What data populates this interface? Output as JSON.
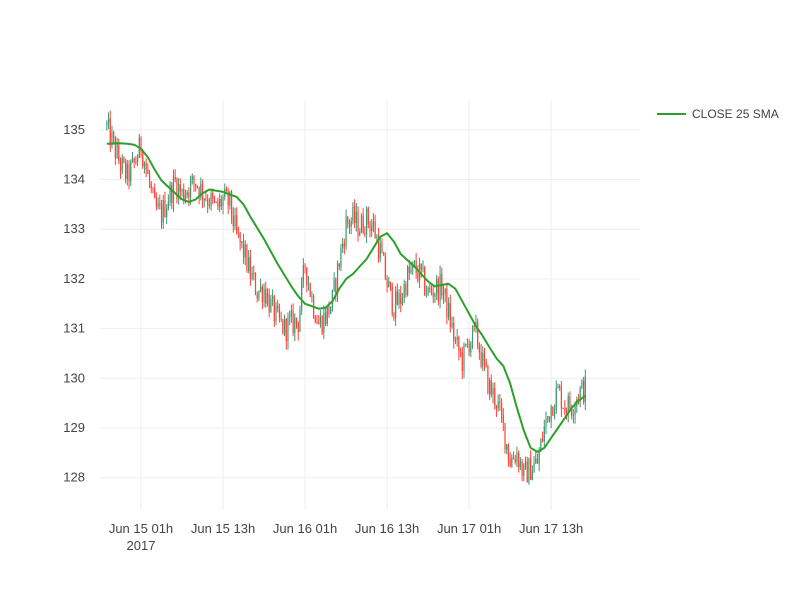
{
  "chart_data": {
    "type": "candlestick",
    "title": "",
    "xlabel": "",
    "ylabel": "",
    "ylim": [
      127.35,
      135.6
    ],
    "xlim": [
      "2017-06-14 19:00",
      "2017-06-18 02:00"
    ],
    "grid": true,
    "legend_position": "top-right",
    "colors": {
      "increasing": "#3D9970",
      "decreasing": "#FF4136",
      "sma": "#2CA02C"
    },
    "y_ticks": [
      "128",
      "129",
      "130",
      "131",
      "132",
      "133",
      "134",
      "135"
    ],
    "x_ticks": [
      {
        "at": "2017-06-15 01:00",
        "label": "Jun 15 01h",
        "sublabel": "2017"
      },
      {
        "at": "2017-06-15 13:00",
        "label": "Jun 15 13h",
        "sublabel": ""
      },
      {
        "at": "2017-06-16 01:00",
        "label": "Jun 16 01h",
        "sublabel": ""
      },
      {
        "at": "2017-06-16 13:00",
        "label": "Jun 16 13h",
        "sublabel": ""
      },
      {
        "at": "2017-06-17 01:00",
        "label": "Jun 17 01h",
        "sublabel": ""
      },
      {
        "at": "2017-06-17 13:00",
        "label": "Jun 17 13h",
        "sublabel": ""
      }
    ],
    "series": [
      {
        "name": "CLOSE 25 SMA",
        "kind": "line",
        "points": [
          [
            "2017-06-14 20:00",
            134.72
          ],
          [
            "2017-06-14 22:00",
            134.73
          ],
          [
            "2017-06-14 23:00",
            134.72
          ],
          [
            "2017-06-15 00:00",
            134.7
          ],
          [
            "2017-06-15 01:00",
            134.62
          ],
          [
            "2017-06-15 02:00",
            134.45
          ],
          [
            "2017-06-15 03:00",
            134.2
          ],
          [
            "2017-06-15 04:00",
            133.98
          ],
          [
            "2017-06-15 05:00",
            133.85
          ],
          [
            "2017-06-15 07:00",
            133.6
          ],
          [
            "2017-06-15 08:00",
            133.55
          ],
          [
            "2017-06-15 09:00",
            133.6
          ],
          [
            "2017-06-15 10:00",
            133.72
          ],
          [
            "2017-06-15 11:00",
            133.8
          ],
          [
            "2017-06-15 13:00",
            133.75
          ],
          [
            "2017-06-15 15:00",
            133.65
          ],
          [
            "2017-06-15 16:00",
            133.5
          ],
          [
            "2017-06-15 17:00",
            133.25
          ],
          [
            "2017-06-15 19:00",
            132.8
          ],
          [
            "2017-06-15 21:00",
            132.3
          ],
          [
            "2017-06-15 23:00",
            131.85
          ],
          [
            "2017-06-16 00:00",
            131.65
          ],
          [
            "2017-06-16 01:00",
            131.5
          ],
          [
            "2017-06-16 02:00",
            131.45
          ],
          [
            "2017-06-16 03:00",
            131.4
          ],
          [
            "2017-06-16 04:00",
            131.42
          ],
          [
            "2017-06-16 05:00",
            131.55
          ],
          [
            "2017-06-16 06:00",
            131.8
          ],
          [
            "2017-06-16 07:00",
            132.0
          ],
          [
            "2017-06-16 08:00",
            132.1
          ],
          [
            "2017-06-16 10:00",
            132.4
          ],
          [
            "2017-06-16 12:00",
            132.85
          ],
          [
            "2017-06-16 13:00",
            132.92
          ],
          [
            "2017-06-16 14:00",
            132.75
          ],
          [
            "2017-06-16 15:00",
            132.5
          ],
          [
            "2017-06-16 17:00",
            132.25
          ],
          [
            "2017-06-16 19:00",
            131.95
          ],
          [
            "2017-06-16 20:00",
            131.85
          ],
          [
            "2017-06-16 21:00",
            131.88
          ],
          [
            "2017-06-16 22:00",
            131.9
          ],
          [
            "2017-06-16 23:00",
            131.8
          ],
          [
            "2017-06-17 00:00",
            131.55
          ],
          [
            "2017-06-17 01:00",
            131.3
          ],
          [
            "2017-06-17 02:00",
            131.05
          ],
          [
            "2017-06-17 03:00",
            130.85
          ],
          [
            "2017-06-17 04:00",
            130.62
          ],
          [
            "2017-06-17 05:00",
            130.4
          ],
          [
            "2017-06-17 06:00",
            130.25
          ],
          [
            "2017-06-17 07:00",
            129.9
          ],
          [
            "2017-06-17 08:00",
            129.4
          ],
          [
            "2017-06-17 09:00",
            128.95
          ],
          [
            "2017-06-17 10:00",
            128.6
          ],
          [
            "2017-06-17 11:00",
            128.52
          ],
          [
            "2017-06-17 12:00",
            128.6
          ],
          [
            "2017-06-17 13:00",
            128.8
          ],
          [
            "2017-06-17 14:00",
            129.0
          ],
          [
            "2017-06-17 15:00",
            129.2
          ],
          [
            "2017-06-17 16:00",
            129.4
          ],
          [
            "2017-06-17 17:00",
            129.55
          ],
          [
            "2017-06-17 18:00",
            129.65
          ]
        ]
      },
      {
        "name": "",
        "kind": "candlestick",
        "anchors": [
          [
            "2017-06-14 20:00",
            135.05
          ],
          [
            "2017-06-14 22:00",
            134.3
          ],
          [
            "2017-06-14 23:00",
            134.05
          ],
          [
            "2017-06-15 00:00",
            134.3
          ],
          [
            "2017-06-15 01:00",
            134.7
          ],
          [
            "2017-06-15 02:00",
            134.05
          ],
          [
            "2017-06-15 03:00",
            133.4
          ],
          [
            "2017-06-15 04:00",
            133.3
          ],
          [
            "2017-06-15 05:00",
            133.65
          ],
          [
            "2017-06-15 06:00",
            133.95
          ],
          [
            "2017-06-15 07:00",
            133.7
          ],
          [
            "2017-06-15 08:00",
            133.85
          ],
          [
            "2017-06-15 09:00",
            133.95
          ],
          [
            "2017-06-15 10:00",
            133.75
          ],
          [
            "2017-06-15 11:00",
            133.6
          ],
          [
            "2017-06-15 12:00",
            133.4
          ],
          [
            "2017-06-15 13:00",
            133.6
          ],
          [
            "2017-06-15 14:00",
            133.5
          ],
          [
            "2017-06-15 15:00",
            132.85
          ],
          [
            "2017-06-15 16:00",
            132.55
          ],
          [
            "2017-06-15 17:00",
            132.1
          ],
          [
            "2017-06-15 18:00",
            131.75
          ],
          [
            "2017-06-15 19:00",
            131.8
          ],
          [
            "2017-06-15 20:00",
            131.45
          ],
          [
            "2017-06-15 21:00",
            131.15
          ],
          [
            "2017-06-15 22:00",
            131.0
          ],
          [
            "2017-06-15 23:00",
            131.1
          ],
          [
            "2017-06-16 00:00",
            131.15
          ],
          [
            "2017-06-16 01:00",
            132.3
          ],
          [
            "2017-06-16 02:00",
            131.6
          ],
          [
            "2017-06-16 03:00",
            131.1
          ],
          [
            "2017-06-16 04:00",
            131.25
          ],
          [
            "2017-06-16 05:00",
            131.55
          ],
          [
            "2017-06-16 06:00",
            132.35
          ],
          [
            "2017-06-16 07:00",
            133.1
          ],
          [
            "2017-06-16 08:00",
            133.2
          ],
          [
            "2017-06-16 09:00",
            133.05
          ],
          [
            "2017-06-16 10:00",
            133.2
          ],
          [
            "2017-06-16 11:00",
            133.05
          ],
          [
            "2017-06-16 12:00",
            132.55
          ],
          [
            "2017-06-16 13:00",
            131.9
          ],
          [
            "2017-06-16 14:00",
            131.45
          ],
          [
            "2017-06-16 15:00",
            131.6
          ],
          [
            "2017-06-16 16:00",
            132.05
          ],
          [
            "2017-06-16 17:00",
            132.2
          ],
          [
            "2017-06-16 18:00",
            132.05
          ],
          [
            "2017-06-16 19:00",
            131.7
          ],
          [
            "2017-06-16 20:00",
            131.8
          ],
          [
            "2017-06-16 21:00",
            131.85
          ],
          [
            "2017-06-16 22:00",
            131.3
          ],
          [
            "2017-06-16 23:00",
            130.7
          ],
          [
            "2017-06-17 00:00",
            130.35
          ],
          [
            "2017-06-17 01:00",
            130.75
          ],
          [
            "2017-06-17 02:00",
            130.9
          ],
          [
            "2017-06-17 03:00",
            130.3
          ],
          [
            "2017-06-17 04:00",
            129.8
          ],
          [
            "2017-06-17 05:00",
            129.55
          ],
          [
            "2017-06-17 06:00",
            129.0
          ],
          [
            "2017-06-17 07:00",
            128.35
          ],
          [
            "2017-06-17 08:00",
            128.5
          ],
          [
            "2017-06-17 09:00",
            128.05
          ],
          [
            "2017-06-17 10:00",
            128.2
          ],
          [
            "2017-06-17 11:00",
            128.3
          ],
          [
            "2017-06-17 12:00",
            129.0
          ],
          [
            "2017-06-17 13:00",
            129.45
          ],
          [
            "2017-06-17 14:00",
            129.75
          ],
          [
            "2017-06-17 15:00",
            129.45
          ],
          [
            "2017-06-17 16:00",
            129.45
          ],
          [
            "2017-06-17 17:00",
            129.7
          ],
          [
            "2017-06-17 18:00",
            129.8
          ]
        ]
      }
    ]
  }
}
